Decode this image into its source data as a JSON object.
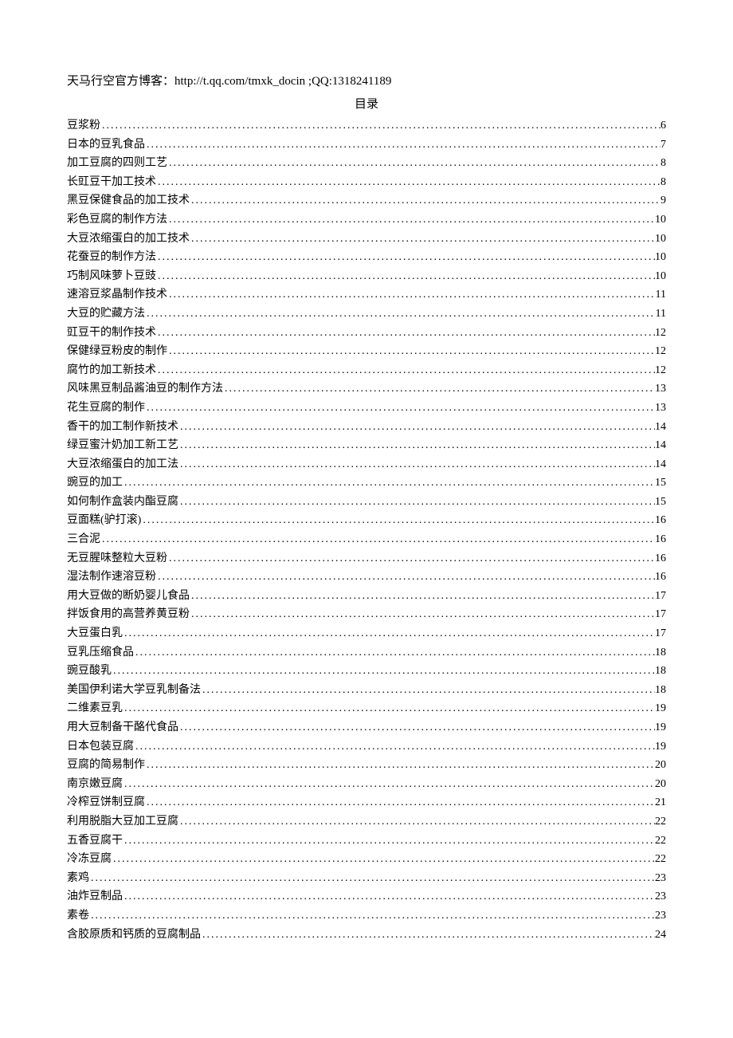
{
  "header": "天马行空官方博客：http://t.qq.com/tmxk_docin ;QQ:1318241189",
  "toc_title": "目录",
  "toc_entries": [
    {
      "label": "豆浆粉",
      "page": "6"
    },
    {
      "label": "日本的豆乳食品",
      "page": "7"
    },
    {
      "label": "加工豆腐的四则工艺",
      "page": "8"
    },
    {
      "label": "长豇豆干加工技术",
      "page": "8"
    },
    {
      "label": "黑豆保健食品的加工技术",
      "page": "9"
    },
    {
      "label": "彩色豆腐的制作方法",
      "page": "10"
    },
    {
      "label": "大豆浓缩蛋白的加工技术",
      "page": "10"
    },
    {
      "label": "花蚕豆的制作方法",
      "page": "10"
    },
    {
      "label": "巧制风味萝卜豆豉",
      "page": "10"
    },
    {
      "label": "速溶豆浆晶制作技术",
      "page": "11"
    },
    {
      "label": "大豆的贮藏方法",
      "page": "11"
    },
    {
      "label": "豇豆干的制作技术",
      "page": "12"
    },
    {
      "label": "保健绿豆粉皮的制作",
      "page": "12"
    },
    {
      "label": "腐竹的加工新技术",
      "page": "12"
    },
    {
      "label": "风味黑豆制品酱油豆的制作方法",
      "page": "13"
    },
    {
      "label": "花生豆腐的制作",
      "page": "13"
    },
    {
      "label": "香干的加工制作新技术",
      "page": "14"
    },
    {
      "label": "绿豆蜜汁奶加工新工艺",
      "page": "14"
    },
    {
      "label": "大豆浓缩蛋白的加工法",
      "page": "14"
    },
    {
      "label": "豌豆的加工",
      "page": "15"
    },
    {
      "label": "如何制作盒装内酯豆腐",
      "page": "15"
    },
    {
      "label": "豆面糕(驴打滚)",
      "page": "16"
    },
    {
      "label": "三合泥",
      "page": "16"
    },
    {
      "label": "无豆腥味整粒大豆粉",
      "page": "16"
    },
    {
      "label": "湿法制作速溶豆粉",
      "page": "16"
    },
    {
      "label": "用大豆做的断奶婴儿食品",
      "page": "17"
    },
    {
      "label": "拌饭食用的高营养黄豆粉",
      "page": "17"
    },
    {
      "label": "大豆蛋白乳",
      "page": "17"
    },
    {
      "label": "豆乳压缩食品",
      "page": "18"
    },
    {
      "label": "豌豆酸乳",
      "page": "18"
    },
    {
      "label": "美国伊利诺大学豆乳制备法",
      "page": "18"
    },
    {
      "label": "二维素豆乳",
      "page": "19"
    },
    {
      "label": "用大豆制备干酪代食品",
      "page": "19"
    },
    {
      "label": "日本包装豆腐",
      "page": "19"
    },
    {
      "label": "豆腐的简易制作",
      "page": "20"
    },
    {
      "label": "南京嫩豆腐",
      "page": "20"
    },
    {
      "label": "冷榨豆饼制豆腐",
      "page": "21"
    },
    {
      "label": "利用脱脂大豆加工豆腐",
      "page": "22"
    },
    {
      "label": "五香豆腐干",
      "page": "22"
    },
    {
      "label": "冷冻豆腐",
      "page": "22"
    },
    {
      "label": "素鸡",
      "page": "23"
    },
    {
      "label": "油炸豆制品",
      "page": "23"
    },
    {
      "label": "素卷",
      "page": "23"
    },
    {
      "label": "含胶原质和钙质的豆腐制品",
      "page": "24"
    }
  ]
}
